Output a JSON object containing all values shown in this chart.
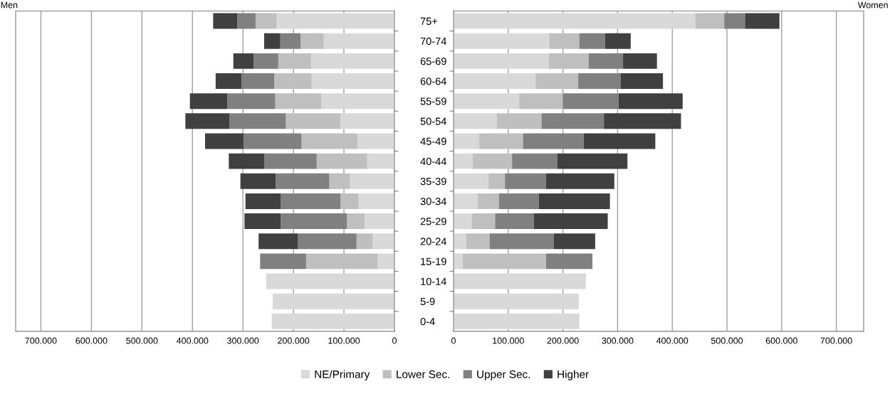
{
  "chart_data": [
    {
      "type": "bar",
      "title": "Men",
      "orientation": "horizontal",
      "stacked": true,
      "grid": "x",
      "legend": "bottom",
      "categories": [
        "75+",
        "70-74",
        "65-69",
        "60-64",
        "55-59",
        "50-54",
        "45-49",
        "40-44",
        "35-39",
        "30-34",
        "25-29",
        "20-24",
        "15-19",
        "10-14",
        "5-9",
        "0-4"
      ],
      "xlim": [
        750000,
        0
      ],
      "xticks": [
        {
          "value": 700000,
          "label": "700.000"
        },
        {
          "value": 600000,
          "label": "600.000"
        },
        {
          "value": 500000,
          "label": "500.000"
        },
        {
          "value": 400000,
          "label": "400.000"
        },
        {
          "value": 300000,
          "label": "300.000"
        },
        {
          "value": 200000,
          "label": "200.000"
        },
        {
          "value": 100000,
          "label": "100.000"
        },
        0
      ],
      "series": [
        {
          "name": "NE/Primary",
          "color": "#d9d9d9",
          "values": [
            233000,
            140000,
            165000,
            164000,
            145000,
            107000,
            73000,
            54000,
            88000,
            71000,
            59000,
            43000,
            33000,
            254000,
            241000,
            243000
          ]
        },
        {
          "name": "Lower Sec.",
          "color": "#bfbfbf",
          "values": [
            42000,
            46000,
            65000,
            74000,
            91000,
            108000,
            111000,
            100000,
            41000,
            36000,
            35000,
            32000,
            142000,
            0,
            0,
            0
          ]
        },
        {
          "name": "Upper Sec.",
          "color": "#808080",
          "values": [
            36000,
            40000,
            49000,
            65000,
            95000,
            112000,
            115000,
            104000,
            106000,
            118000,
            131000,
            116000,
            91000,
            0,
            0,
            0
          ]
        },
        {
          "name": "Higher",
          "color": "#404040",
          "values": [
            48000,
            32000,
            40000,
            51000,
            74000,
            87000,
            76000,
            70000,
            70000,
            70000,
            72000,
            78000,
            0,
            0,
            0,
            0
          ]
        }
      ]
    },
    {
      "type": "bar",
      "title": "Women",
      "orientation": "horizontal",
      "stacked": true,
      "grid": "x",
      "tick_labels": "x",
      "categories": [
        null,
        null,
        null,
        null,
        null,
        null,
        null,
        null,
        null,
        null,
        null,
        null,
        null,
        null,
        null,
        null
      ],
      "xlim": [
        0,
        750000
      ],
      "xticks": [
        0,
        {
          "value": 100000,
          "label": "100.000"
        },
        {
          "value": 200000,
          "label": "200.000"
        },
        {
          "value": 300000,
          "label": "300.000"
        },
        {
          "value": 400000,
          "label": "400.000"
        },
        {
          "value": 500000,
          "label": "500.000"
        },
        {
          "value": 600000,
          "label": "600.000"
        },
        {
          "value": 700000,
          "label": "700.000"
        }
      ],
      "series": [
        {
          "color": "#d9d9d9",
          "values": [
            442000,
            175000,
            174000,
            150000,
            120000,
            79000,
            47000,
            35000,
            64000,
            44000,
            33000,
            23000,
            17000,
            242000,
            229000,
            230000
          ]
        },
        {
          "color": "#bfbfbf",
          "values": [
            53000,
            55000,
            73000,
            78000,
            80000,
            82000,
            80000,
            72000,
            30000,
            39000,
            43000,
            43000,
            152000,
            0,
            0,
            0
          ]
        },
        {
          "color": "#808080",
          "values": [
            38000,
            47000,
            63000,
            78000,
            102000,
            114000,
            111000,
            83000,
            75000,
            73000,
            71000,
            117000,
            85000,
            0,
            0,
            0
          ]
        },
        {
          "color": "#404040",
          "values": [
            63000,
            47000,
            62000,
            77000,
            117000,
            141000,
            131000,
            128000,
            125000,
            130000,
            135000,
            76000,
            0,
            0,
            0,
            0
          ]
        }
      ]
    }
  ]
}
